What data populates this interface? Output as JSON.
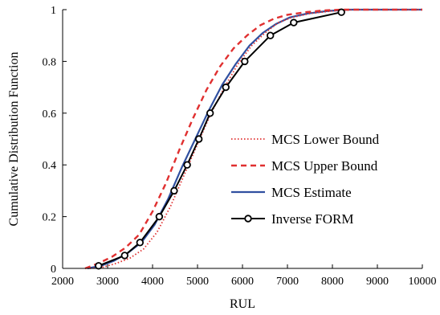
{
  "chart_data": {
    "type": "line",
    "title": "",
    "xlabel": "RUL",
    "ylabel": "Cumulative Distribution Function",
    "xlim": [
      2000,
      10000
    ],
    "ylim": [
      0,
      1
    ],
    "xticks": [
      2000,
      3000,
      4000,
      5000,
      6000,
      7000,
      8000,
      9000,
      10000
    ],
    "yticks": [
      0,
      0.2,
      0.4,
      0.6,
      0.8,
      1
    ],
    "ytick_labels": [
      "0",
      "0.2",
      "0.4",
      "0.6",
      "0.8",
      "1"
    ],
    "grid": false,
    "legend_position": "center-right",
    "series": [
      {
        "name": "MCS Lower Bound",
        "color": "#e03030",
        "style": "dotted",
        "x": [
          2600,
          2900,
          3200,
          3500,
          3800,
          4100,
          4400,
          4700,
          5000,
          5300,
          5600,
          5900,
          6200,
          6500,
          6800,
          7100,
          7500,
          8000,
          8500,
          10000
        ],
        "y": [
          0,
          0.005,
          0.02,
          0.04,
          0.075,
          0.14,
          0.24,
          0.36,
          0.48,
          0.6,
          0.7,
          0.79,
          0.86,
          0.91,
          0.95,
          0.97,
          0.985,
          0.995,
          1,
          1
        ]
      },
      {
        "name": "MCS Upper Bound",
        "color": "#e03030",
        "style": "dashed",
        "x": [
          2500,
          2800,
          3100,
          3400,
          3700,
          4000,
          4300,
          4600,
          4900,
          5200,
          5500,
          5800,
          6100,
          6400,
          6700,
          7000,
          7400,
          7800,
          8200,
          10000
        ],
        "y": [
          0,
          0.02,
          0.045,
          0.08,
          0.13,
          0.22,
          0.33,
          0.46,
          0.58,
          0.69,
          0.78,
          0.85,
          0.9,
          0.94,
          0.965,
          0.98,
          0.99,
          0.997,
          1,
          1
        ]
      },
      {
        "name": "MCS Estimate",
        "color": "#3050a0",
        "style": "solid",
        "x": [
          2550,
          2850,
          3150,
          3450,
          3750,
          4050,
          4350,
          4650,
          4950,
          5250,
          5550,
          5850,
          6150,
          6450,
          6750,
          7050,
          7450,
          7900,
          8400,
          10000
        ],
        "y": [
          0,
          0.01,
          0.03,
          0.06,
          0.1,
          0.17,
          0.27,
          0.39,
          0.5,
          0.61,
          0.71,
          0.79,
          0.86,
          0.91,
          0.945,
          0.97,
          0.985,
          0.995,
          1,
          1
        ]
      },
      {
        "name": "Inverse FORM",
        "color": "#000000",
        "style": "solid-markers",
        "x": [
          2800,
          3380,
          3720,
          4150,
          4480,
          4770,
          5030,
          5280,
          5630,
          6050,
          6620,
          7140,
          8200
        ],
        "y": [
          0.01,
          0.05,
          0.1,
          0.2,
          0.3,
          0.4,
          0.5,
          0.6,
          0.7,
          0.8,
          0.9,
          0.95,
          0.99
        ]
      }
    ]
  }
}
